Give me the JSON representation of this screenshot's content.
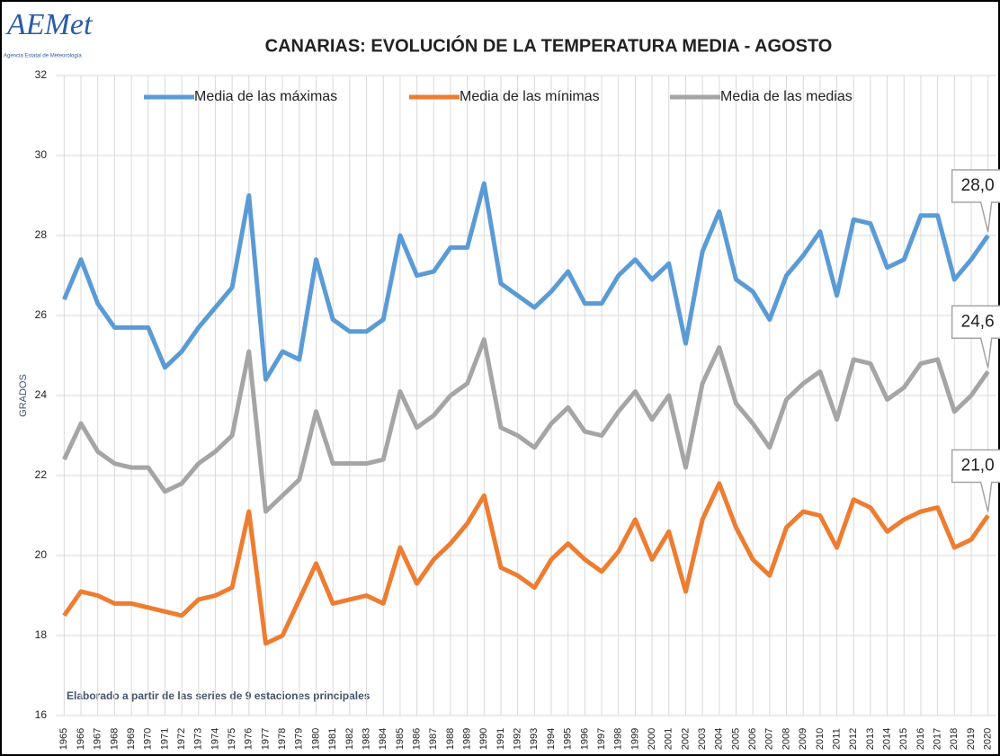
{
  "logo": {
    "name": "AEMet",
    "subtitle": "Agencia Estatal de Meteorología"
  },
  "chart_data": {
    "type": "line",
    "title": "CANARIAS: EVOLUCIÓN DE LA TEMPERATURA MEDIA - AGOSTO",
    "y_label": "GRADOS",
    "note": "Elaborado a partir de las series de 9 estaciones principales",
    "categories": [
      "1965",
      "1966",
      "1967",
      "1968",
      "1969",
      "1970",
      "1971",
      "1972",
      "1973",
      "1974",
      "1975",
      "1976",
      "1977",
      "1978",
      "1979",
      "1980",
      "1981",
      "1982",
      "1983",
      "1984",
      "1985",
      "1986",
      "1987",
      "1988",
      "1989",
      "1990",
      "1991",
      "1992",
      "1993",
      "1994",
      "1995",
      "1996",
      "1997",
      "1998",
      "1999",
      "2000",
      "2001",
      "2002",
      "2003",
      "2004",
      "2005",
      "2006",
      "2007",
      "2008",
      "2009",
      "2010",
      "2011",
      "2012",
      "2013",
      "2014",
      "2015",
      "2016",
      "2017",
      "2018",
      "2019",
      "2020"
    ],
    "series": [
      {
        "name": "Media de las máximas",
        "color": "#5b9bd5",
        "values": [
          26.4,
          27.4,
          26.3,
          25.7,
          25.7,
          25.7,
          24.7,
          25.1,
          25.7,
          26.2,
          26.7,
          29.0,
          24.4,
          25.1,
          24.9,
          27.4,
          25.9,
          25.6,
          25.6,
          25.9,
          28.0,
          27.0,
          27.1,
          27.7,
          27.7,
          29.3,
          26.8,
          26.5,
          26.2,
          26.6,
          27.1,
          26.3,
          26.3,
          27.0,
          27.4,
          26.9,
          27.3,
          25.3,
          27.6,
          28.6,
          26.9,
          26.6,
          25.9,
          27.0,
          27.5,
          28.1,
          26.5,
          28.4,
          28.3,
          27.2,
          27.4,
          28.5,
          28.5,
          26.9,
          27.4,
          28.0
        ],
        "value_labels": [
          null,
          null,
          null,
          null,
          null,
          null,
          null,
          null,
          null,
          null,
          null,
          null,
          null,
          null,
          null,
          null,
          null,
          null,
          null,
          null,
          null,
          null,
          null,
          null,
          null,
          null,
          null,
          null,
          null,
          null,
          null,
          null,
          null,
          null,
          null,
          null,
          null,
          null,
          null,
          null,
          null,
          null,
          null,
          null,
          null,
          null,
          null,
          null,
          null,
          null,
          null,
          null,
          null,
          null,
          null,
          "28,0"
        ]
      },
      {
        "name": "Media de las mínimas",
        "color": "#ed7d31",
        "values": [
          18.5,
          19.1,
          19.0,
          18.8,
          18.8,
          18.7,
          18.6,
          18.5,
          18.9,
          19.0,
          19.2,
          21.1,
          17.8,
          18.0,
          18.9,
          19.8,
          18.8,
          18.9,
          19.0,
          18.8,
          20.2,
          19.3,
          19.9,
          20.3,
          20.8,
          21.5,
          19.7,
          19.5,
          19.2,
          19.9,
          20.3,
          19.9,
          19.6,
          20.1,
          20.9,
          19.9,
          20.6,
          19.1,
          20.9,
          21.8,
          20.7,
          19.9,
          19.5,
          20.7,
          21.1,
          21.0,
          20.2,
          21.4,
          21.2,
          20.6,
          20.9,
          21.1,
          21.2,
          20.2,
          20.4,
          21.0
        ],
        "value_labels": [
          null,
          null,
          null,
          null,
          null,
          null,
          null,
          null,
          null,
          null,
          null,
          null,
          null,
          null,
          null,
          null,
          null,
          null,
          null,
          null,
          null,
          null,
          null,
          null,
          null,
          null,
          null,
          null,
          null,
          null,
          null,
          null,
          null,
          null,
          null,
          null,
          null,
          null,
          null,
          null,
          null,
          null,
          null,
          null,
          null,
          null,
          null,
          null,
          null,
          null,
          null,
          null,
          null,
          null,
          null,
          "21,0"
        ]
      },
      {
        "name": "Media de las medias",
        "color": "#a5a5a5",
        "values": [
          22.4,
          23.3,
          22.6,
          22.3,
          22.2,
          22.2,
          21.6,
          21.8,
          22.3,
          22.6,
          23.0,
          25.1,
          21.1,
          21.5,
          21.9,
          23.6,
          22.3,
          22.3,
          22.3,
          22.4,
          24.1,
          23.2,
          23.5,
          24.0,
          24.3,
          25.4,
          23.2,
          23.0,
          22.7,
          23.3,
          23.7,
          23.1,
          23.0,
          23.6,
          24.1,
          23.4,
          24.0,
          22.2,
          24.3,
          25.2,
          23.8,
          23.3,
          22.7,
          23.9,
          24.3,
          24.6,
          23.4,
          24.9,
          24.8,
          23.9,
          24.2,
          24.8,
          24.9,
          23.6,
          24.0,
          24.6
        ],
        "value_labels": [
          null,
          null,
          null,
          null,
          null,
          null,
          null,
          null,
          null,
          null,
          null,
          null,
          null,
          null,
          null,
          null,
          null,
          null,
          null,
          null,
          null,
          null,
          null,
          null,
          null,
          null,
          null,
          null,
          null,
          null,
          null,
          null,
          null,
          null,
          null,
          null,
          null,
          null,
          null,
          null,
          null,
          null,
          null,
          null,
          null,
          null,
          null,
          null,
          null,
          null,
          null,
          null,
          null,
          null,
          null,
          "24,6"
        ]
      }
    ],
    "ylim": [
      16,
      32
    ],
    "yticks": [
      16,
      18,
      20,
      22,
      24,
      26,
      28,
      30,
      32
    ],
    "grid": true,
    "legend": "top"
  }
}
